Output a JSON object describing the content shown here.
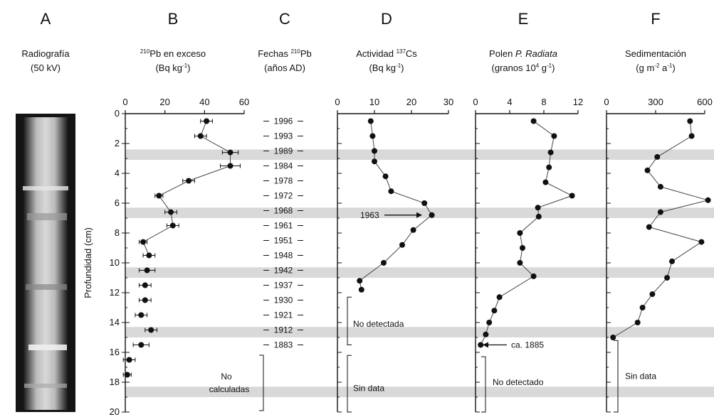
{
  "panels": [
    {
      "letter": "A",
      "title1": "Radiografía",
      "title2": "(50 kV)"
    },
    {
      "letter": "B",
      "title_sup": "210",
      "title_main": "Pb en exceso",
      "title2": "(Bq kg",
      "title2_sup": "-1",
      "title2_end": ")"
    },
    {
      "letter": "C",
      "title_main": "Fechas ",
      "title_sup": "210",
      "title_end": "Pb",
      "title2": "(años AD)"
    },
    {
      "letter": "D",
      "title_main": "Actividad ",
      "title_sup": "137",
      "title_end": "Cs",
      "title2": "(Bq kg",
      "title2_sup": "-1",
      "title2_end": ")"
    },
    {
      "letter": "E",
      "title_main": "Polen ",
      "title_italic": "P. Radiata",
      "title2": "(granos 10",
      "title2_sup": "4",
      "title2_mid": " g",
      "title2_sup2": "-1",
      "title2_end": ")"
    },
    {
      "letter": "F",
      "title_main": "Sedimentación",
      "title2": "(g m",
      "title2_sup": "-2",
      "title2_mid": " a",
      "title2_sup2": "-1",
      "title2_end": ")"
    }
  ],
  "colors": {
    "band": "#d9d9d9",
    "ink": "#111111",
    "xray_dark": "#1a1a1a",
    "xray_light": "#c8c8c8"
  },
  "chart_data": [
    {
      "panel": "B",
      "type": "scatter",
      "xlabel": "210Pb en exceso (Bq kg-1)",
      "ylabel": "Profundidad (cm)",
      "xlim": [
        0,
        60
      ],
      "ylim": [
        20,
        0
      ],
      "y_reversed": true,
      "xticks": [
        "0",
        "20",
        "40",
        "60"
      ],
      "yticks": [
        "0",
        "2",
        "4",
        "6",
        "8",
        "10",
        "12",
        "14",
        "16",
        "18",
        "20"
      ],
      "points": [
        {
          "x": 41,
          "y": 0.5,
          "xerr": 3
        },
        {
          "x": 38,
          "y": 1.5,
          "xerr": 3
        },
        {
          "x": 53,
          "y": 2.6,
          "xerr": 4
        },
        {
          "x": 53,
          "y": 3.5,
          "xerr": 5
        },
        {
          "x": 32,
          "y": 4.5,
          "xerr": 3
        },
        {
          "x": 17,
          "y": 5.5,
          "xerr": 2
        },
        {
          "x": 23,
          "y": 6.6,
          "xerr": 3
        },
        {
          "x": 24,
          "y": 7.5,
          "xerr": 3
        },
        {
          "x": 9,
          "y": 8.6,
          "xerr": 2
        },
        {
          "x": 12,
          "y": 9.5,
          "xerr": 3
        },
        {
          "x": 11,
          "y": 10.5,
          "xerr": 4
        },
        {
          "x": 10,
          "y": 11.5,
          "xerr": 3
        },
        {
          "x": 10,
          "y": 12.5,
          "xerr": 3
        },
        {
          "x": 8,
          "y": 13.5,
          "xerr": 3
        },
        {
          "x": 13,
          "y": 14.5,
          "xerr": 3
        },
        {
          "x": 8,
          "y": 15.5,
          "xerr": 4
        },
        {
          "x": 2,
          "y": 16.5,
          "xerr": 3
        },
        {
          "x": 1,
          "y": 17.5,
          "xerr": 2
        }
      ],
      "note_lines": [
        "No",
        "calculadas"
      ]
    },
    {
      "panel": "C",
      "type": "table",
      "dates": [
        {
          "label": "1996",
          "y": 0.5
        },
        {
          "label": "1993",
          "y": 1.5
        },
        {
          "label": "1989",
          "y": 2.5
        },
        {
          "label": "1984",
          "y": 3.5
        },
        {
          "label": "1978",
          "y": 4.5
        },
        {
          "label": "1972",
          "y": 5.5
        },
        {
          "label": "1968",
          "y": 6.5
        },
        {
          "label": "1961",
          "y": 7.5
        },
        {
          "label": "1951",
          "y": 8.5
        },
        {
          "label": "1948",
          "y": 9.5
        },
        {
          "label": "1942",
          "y": 10.5
        },
        {
          "label": "1937",
          "y": 11.5
        },
        {
          "label": "1930",
          "y": 12.5
        },
        {
          "label": "1921",
          "y": 13.5
        },
        {
          "label": "1912",
          "y": 14.5
        },
        {
          "label": "1883",
          "y": 15.5
        }
      ]
    },
    {
      "panel": "D",
      "type": "line",
      "xlabel": "Actividad 137Cs (Bq kg-1)",
      "xlim": [
        0,
        30
      ],
      "ylim": [
        20,
        0
      ],
      "xticks": [
        "0",
        "10",
        "20",
        "30"
      ],
      "points": [
        {
          "x": 9,
          "y": 0.5
        },
        {
          "x": 9.5,
          "y": 1.5
        },
        {
          "x": 10,
          "y": 2.5
        },
        {
          "x": 10,
          "y": 3.2
        },
        {
          "x": 13,
          "y": 4.2
        },
        {
          "x": 14.5,
          "y": 5.2
        },
        {
          "x": 23.5,
          "y": 6.0
        },
        {
          "x": 25.5,
          "y": 6.8
        },
        {
          "x": 20.5,
          "y": 7.8
        },
        {
          "x": 17.5,
          "y": 8.8
        },
        {
          "x": 12.5,
          "y": 10.0
        },
        {
          "x": 6,
          "y": 11.2
        },
        {
          "x": 6.5,
          "y": 11.8
        }
      ],
      "annotation": "1963",
      "annotation_y": 6.8,
      "note_detect": "No detectada",
      "note_nodata": "Sin data"
    },
    {
      "panel": "E",
      "type": "line",
      "xlabel": "Polen P. Radiata (granos 10^4 g-1)",
      "xlim": [
        0,
        12
      ],
      "ylim": [
        20,
        0
      ],
      "xticks": [
        "0",
        "4",
        "8",
        "12"
      ],
      "points": [
        {
          "x": 6.8,
          "y": 0.5
        },
        {
          "x": 9.2,
          "y": 1.5
        },
        {
          "x": 8.8,
          "y": 2.6
        },
        {
          "x": 8.6,
          "y": 3.6
        },
        {
          "x": 8.2,
          "y": 4.6
        },
        {
          "x": 11.3,
          "y": 5.5
        },
        {
          "x": 7.3,
          "y": 6.3
        },
        {
          "x": 7.4,
          "y": 6.9
        },
        {
          "x": 5.2,
          "y": 8.0
        },
        {
          "x": 5.5,
          "y": 9.0
        },
        {
          "x": 5.2,
          "y": 10.0
        },
        {
          "x": 6.8,
          "y": 10.9
        },
        {
          "x": 2.8,
          "y": 12.3
        },
        {
          "x": 2.2,
          "y": 13.2
        },
        {
          "x": 1.6,
          "y": 14.0
        },
        {
          "x": 1.2,
          "y": 14.8
        },
        {
          "x": 0.6,
          "y": 15.5
        }
      ],
      "annotation": "ca. 1885",
      "annotation_y": 15.5,
      "note_detect": "No detectado"
    },
    {
      "panel": "F",
      "type": "line",
      "xlabel": "Sedimentación (g m-2 a-1)",
      "xlim": [
        0,
        600
      ],
      "ylim": [
        20,
        0
      ],
      "xticks": [
        "0",
        "300",
        "600"
      ],
      "points": [
        {
          "x": 510,
          "y": 0.5
        },
        {
          "x": 520,
          "y": 1.5
        },
        {
          "x": 310,
          "y": 2.9
        },
        {
          "x": 250,
          "y": 3.8
        },
        {
          "x": 330,
          "y": 4.9
        },
        {
          "x": 620,
          "y": 5.8
        },
        {
          "x": 330,
          "y": 6.6
        },
        {
          "x": 260,
          "y": 7.6
        },
        {
          "x": 580,
          "y": 8.6
        },
        {
          "x": 400,
          "y": 9.9
        },
        {
          "x": 370,
          "y": 11.0
        },
        {
          "x": 280,
          "y": 12.1
        },
        {
          "x": 220,
          "y": 13.0
        },
        {
          "x": 190,
          "y": 14.0
        },
        {
          "x": 40,
          "y": 15.0
        }
      ],
      "note_nodata": "Sin data"
    }
  ],
  "bands_depth": [
    [
      2.4,
      3.1
    ],
    [
      6.3,
      7.0
    ],
    [
      10.3,
      11.0
    ],
    [
      14.3,
      15.0
    ],
    [
      18.3,
      19.0
    ]
  ]
}
